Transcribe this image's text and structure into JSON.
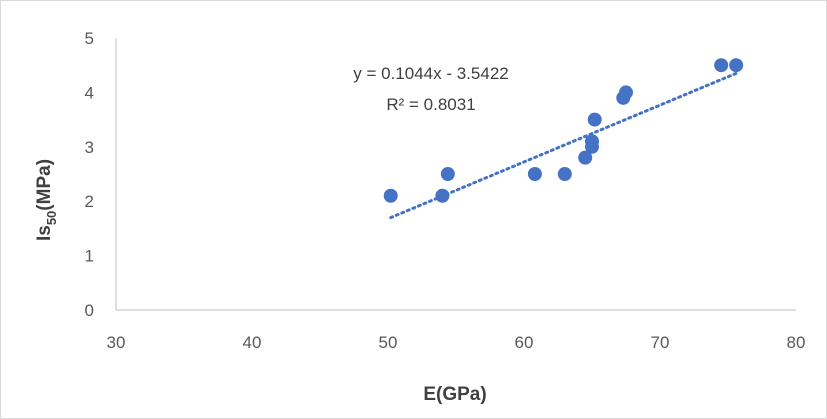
{
  "chart_data": {
    "type": "scatter",
    "xlabel": "E(GPa)",
    "ylabel": {
      "base": "Is",
      "subscript": "50",
      "unit": "(MPa)"
    },
    "xlim": [
      30,
      80
    ],
    "ylim": [
      0,
      5
    ],
    "xticks": [
      "30",
      "40",
      "50",
      "60",
      "70",
      "80"
    ],
    "yticks": [
      "0",
      "1",
      "2",
      "3",
      "4",
      "5"
    ],
    "grid": false,
    "legend": "none",
    "marker_color": "#4472c4",
    "trendline": {
      "type": "linear",
      "slope": 0.1044,
      "intercept": -3.5422,
      "x_range": [
        50.2,
        75.6
      ],
      "style": "dotted",
      "color": "#4472c4",
      "equation_label": "y = 0.1044x - 3.5422",
      "r2_label": "R² = 0.8031"
    },
    "points": [
      {
        "x": 50.2,
        "y": 2.1
      },
      {
        "x": 54.0,
        "y": 2.1
      },
      {
        "x": 54.4,
        "y": 2.5
      },
      {
        "x": 60.8,
        "y": 2.5
      },
      {
        "x": 63.0,
        "y": 2.5
      },
      {
        "x": 64.5,
        "y": 2.8
      },
      {
        "x": 65.0,
        "y": 3.0
      },
      {
        "x": 65.0,
        "y": 3.1
      },
      {
        "x": 65.2,
        "y": 3.5
      },
      {
        "x": 67.3,
        "y": 3.9
      },
      {
        "x": 67.5,
        "y": 4.0
      },
      {
        "x": 74.5,
        "y": 4.5
      },
      {
        "x": 75.6,
        "y": 4.5
      }
    ]
  }
}
